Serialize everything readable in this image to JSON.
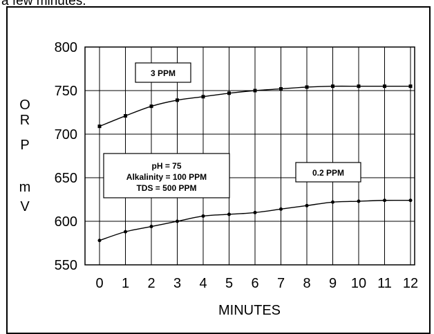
{
  "page": {
    "caption_fragment": "a few minutes."
  },
  "chart_data": {
    "type": "line",
    "xlabel": "MINUTES",
    "ylabel": [
      "O",
      "R",
      "P",
      "",
      "m",
      "V"
    ],
    "x": [
      0,
      1,
      2,
      3,
      4,
      5,
      6,
      7,
      8,
      9,
      10,
      11,
      12
    ],
    "xlim": [
      0,
      12
    ],
    "ylim": [
      550,
      800
    ],
    "yticks": [
      550,
      600,
      650,
      700,
      750,
      800
    ],
    "grid": true,
    "series": [
      {
        "name": "3 PPM",
        "marker": "square",
        "values": [
          709,
          721,
          732,
          739,
          743,
          747,
          750,
          752,
          754,
          755,
          755,
          755,
          755
        ]
      },
      {
        "name": "0.2 PPM",
        "marker": "circle",
        "values": [
          578,
          588,
          594,
          600,
          606,
          608,
          610,
          614,
          618,
          622,
          623,
          624,
          624
        ]
      }
    ],
    "annotations": {
      "conditions": [
        "pH = 75",
        "Alkalinity = 100 PPM",
        "TDS = 500 PPM"
      ]
    }
  }
}
